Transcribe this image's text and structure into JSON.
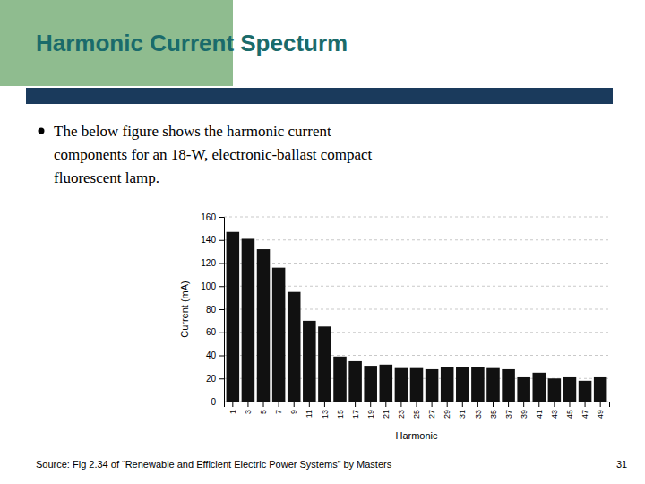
{
  "chart_data": {
    "type": "bar",
    "title": "Harmonic Current Specturm",
    "annotations": [
      "The below figure shows the harmonic current",
      "components for an 18-W, electronic-ballast compact",
      "fluorescent lamp.",
      "Source: Fig 2.34 of “Renewable and Efficient Electric Power Systems” by Masters",
      "31"
    ],
    "x_label": "Harmonic",
    "y_label": "Current (mA)",
    "categories": [
      1,
      3,
      5,
      7,
      9,
      11,
      13,
      15,
      17,
      19,
      21,
      23,
      25,
      27,
      29,
      31,
      33,
      35,
      37,
      39,
      41,
      43,
      45,
      47,
      49
    ],
    "values": [
      147,
      141,
      132,
      116,
      95,
      70,
      65,
      39,
      35,
      31,
      32,
      29,
      29,
      28,
      30,
      30,
      30,
      29,
      28,
      21,
      25,
      20,
      21,
      18,
      21
    ],
    "color": "#111111",
    "ylim": [
      0,
      160
    ],
    "yticks": [
      0,
      20,
      40,
      60,
      80,
      100,
      120,
      140,
      160
    ],
    "grid": true
  }
}
